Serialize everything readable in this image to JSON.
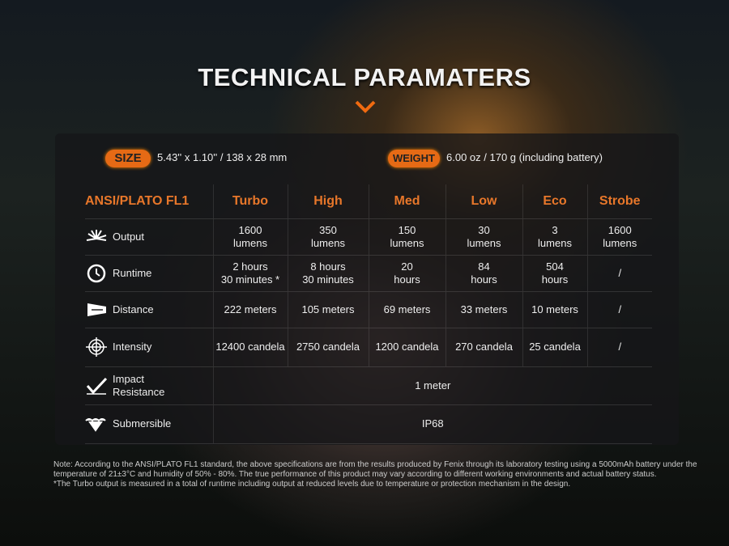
{
  "title": "TECHNICAL PARAMATERS",
  "accent": "#e8772a",
  "size": {
    "label": "SIZE",
    "value": "5.43'' x 1.10'' / 138 x 28 mm"
  },
  "weight": {
    "label": "WEIGHT",
    "value": "6.00 oz / 170 g (including battery)"
  },
  "table": {
    "headers": [
      "ANSI/PLATO FL1",
      "Turbo",
      "High",
      "Med",
      "Low",
      "Eco",
      "Strobe"
    ],
    "rows": [
      {
        "icon": "output-icon",
        "label": "Output",
        "cells": [
          "1600\nlumens",
          "350\nlumens",
          "150\nlumens",
          "30\nlumens",
          "3\nlumens",
          "1600\nlumens"
        ]
      },
      {
        "icon": "clock-icon",
        "label": "Runtime",
        "cells": [
          "2 hours\n30 minutes *",
          "8 hours\n30 minutes",
          "20\nhours",
          "84\nhours",
          "504\nhours",
          "/"
        ]
      },
      {
        "icon": "beam-distance-icon",
        "label": "Distance",
        "cells": [
          "222 meters",
          "105 meters",
          "69 meters",
          "33 meters",
          "10 meters",
          "/"
        ]
      },
      {
        "icon": "crosshair-icon",
        "label": "Intensity",
        "cells": [
          "12400 candela",
          "2750 candela",
          "1200 candela",
          "270 candela",
          "25 candela",
          "/"
        ]
      },
      {
        "icon": "impact-icon",
        "label": "Impact\nResistance",
        "span": "1 meter"
      },
      {
        "icon": "water-icon",
        "label": "Submersible",
        "span": "IP68"
      }
    ]
  },
  "note": [
    "Note: According to the ANSI/PLATO FL1 standard, the above specifications are from the results produced by Fenix through its laboratory testing using a 5000mAh battery under the temperature of 21±3°C and humidity of 50% - 80%. The true performance of this product may vary according to different working environments and actual battery status.",
    "*The Turbo output is measured in a total of runtime including output at reduced levels due to temperature or protection mechanism in the design."
  ]
}
